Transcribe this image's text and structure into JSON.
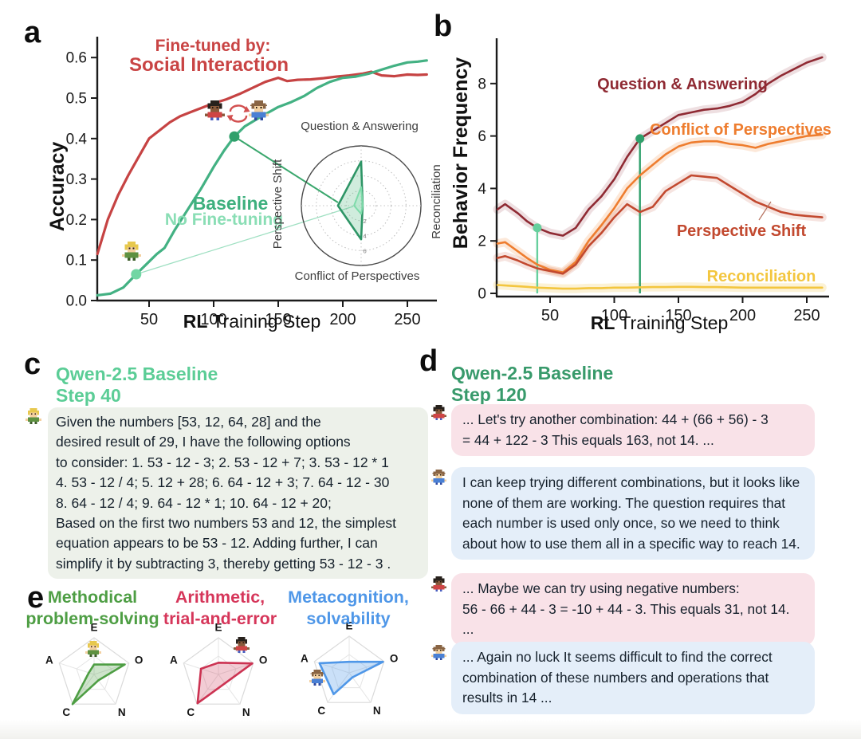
{
  "panels": {
    "a": {
      "label": "a",
      "ylabel": "Accuracy",
      "xlabel_bold": "RL",
      "xlabel_rest": " Training Step",
      "annotation_red_1": "Fine-tuned by:",
      "annotation_red_2": "Social Interaction",
      "annotation_red_color": "#c94444",
      "annotation_green_1": "Baseline",
      "annotation_green_2": "No Fine-tuning",
      "annotation_green_dark": "#3eb07e",
      "annotation_green_light": "#8adeb5"
    },
    "b": {
      "label": "b",
      "ylabel": "Behavior Frequency",
      "xlabel_bold": "RL",
      "xlabel_rest": " Training Step"
    },
    "c": {
      "label": "c",
      "title_line1": "Qwen-2.5 Baseline",
      "title_line2": "Step 40",
      "title_color": "#5bcd96",
      "message": "Given the numbers [53, 12, 64, 28] and the\ndesired result of 29, I have the following options\nto consider: 1. 53 - 12 - 3; 2. 53 - 12 + 7; 3. 53 - 12 * 1\n4. 53 - 12 / 4; 5. 12 + 28; 6. 64 - 12 + 3; 7. 64 - 12 - 30\n8. 64 - 12 / 4; 9. 64 - 12 * 1; 10. 64 - 12 + 20;\nBased on the first two numbers 53 and 12, the simplest\nequation appears to be 53 - 12.  Adding further, I can\nsimplify it by subtracting 3, thereby getting 53 - 12 - 3 ."
    },
    "d": {
      "label": "d",
      "title_line1": "Qwen-2.5 Baseline",
      "title_line2": "Step 120",
      "title_color": "#389a6b",
      "messages": [
        {
          "speaker": "agent-red",
          "text": "... Let's try another combination: 44 + (66 + 56) - 3\n= 44 + 122 - 3  This equals 163, not 14. ..."
        },
        {
          "speaker": "agent-blue",
          "text": "I can keep trying different combinations, but it looks like\nnone of them are working. The question requires that\neach number is used only once, so we need to think\nabout how to use them all in a specific way to reach 14."
        },
        {
          "speaker": "agent-red",
          "text": "... Maybe we can try using negative numbers:\n56 - 66 + 44 - 3 = -10 + 44 - 3. This equals 31, not 14. ..."
        },
        {
          "speaker": "agent-blue",
          "text": "... Again no luck  It seems difficult to find the correct\ncombination of these numbers and operations that\nresults in 14 ..."
        }
      ]
    },
    "e": {
      "label": "e"
    }
  },
  "chart_data": [
    {
      "id": "accuracy",
      "type": "line",
      "title": "",
      "xlabel": "RL Training Step",
      "ylabel": "Accuracy",
      "xlim": [
        10,
        265
      ],
      "ylim": [
        0,
        0.65
      ],
      "xticks": [
        50,
        100,
        150,
        200,
        250
      ],
      "yticks": [
        0.0,
        0.1,
        0.2,
        0.3,
        0.4,
        0.5,
        0.6
      ],
      "grid": false,
      "series": [
        {
          "name": "Fine-tuned by: Social Interaction",
          "color": "#c64343",
          "x": [
            10,
            18,
            26,
            34,
            42,
            50,
            58,
            66,
            74,
            82,
            90,
            100,
            110,
            120,
            130,
            140,
            150,
            157,
            165,
            175,
            185,
            195,
            205,
            215,
            222,
            230,
            240,
            250,
            258,
            265
          ],
          "y": [
            0.115,
            0.2,
            0.26,
            0.31,
            0.355,
            0.4,
            0.42,
            0.44,
            0.455,
            0.465,
            0.475,
            0.487,
            0.497,
            0.51,
            0.525,
            0.54,
            0.55,
            0.542,
            0.545,
            0.546,
            0.549,
            0.553,
            0.556,
            0.56,
            0.565,
            0.556,
            0.554,
            0.558,
            0.557,
            0.558
          ]
        },
        {
          "name": "Baseline No Fine-tuning",
          "color": "#43b183",
          "x": [
            10,
            20,
            30,
            40,
            48,
            56,
            62,
            70,
            80,
            90,
            100,
            108,
            116,
            124,
            132,
            140,
            150,
            160,
            170,
            180,
            190,
            200,
            210,
            220,
            230,
            240,
            250,
            258,
            265
          ],
          "y": [
            0.013,
            0.017,
            0.032,
            0.065,
            0.09,
            0.115,
            0.13,
            0.175,
            0.225,
            0.275,
            0.33,
            0.37,
            0.405,
            0.43,
            0.445,
            0.46,
            0.478,
            0.49,
            0.505,
            0.525,
            0.54,
            0.55,
            0.553,
            0.56,
            0.57,
            0.58,
            0.588,
            0.59,
            0.593
          ]
        }
      ],
      "markers": [
        {
          "x": 40,
          "y": 0.065,
          "color": "#72d6a4",
          "label": "Step 40"
        },
        {
          "x": 116,
          "y": 0.405,
          "color": "#2fa06b",
          "label": "Step 120"
        }
      ],
      "connectors": [
        {
          "to": [
            443,
            259
          ],
          "color": "#9fe0c2",
          "w": 1.3
        },
        {
          "to": [
            424,
            254
          ],
          "color": "#3aa76d",
          "w": 2
        }
      ]
    },
    {
      "id": "behavior-frequency",
      "type": "line",
      "title": "",
      "xlabel": "RL Training Step",
      "ylabel": "Behavior Frequency",
      "xlim": [
        9,
        262
      ],
      "ylim": [
        0,
        9.5
      ],
      "xticks": [
        50,
        100,
        150,
        200,
        250
      ],
      "yticks": [
        0,
        2,
        4,
        6,
        8
      ],
      "grid": false,
      "series": [
        {
          "name": "Question & Answering",
          "color": "#8f2a33",
          "band": "rgba(143,42,51,0.15)",
          "x": [
            9,
            15,
            25,
            32,
            40,
            50,
            60,
            70,
            80,
            90,
            100,
            110,
            120,
            130,
            140,
            150,
            160,
            170,
            180,
            190,
            200,
            210,
            220,
            230,
            240,
            250,
            262
          ],
          "y": [
            3.2,
            3.4,
            3.05,
            2.75,
            2.5,
            2.3,
            2.2,
            2.5,
            3.2,
            3.7,
            4.35,
            5.2,
            5.9,
            6.2,
            6.5,
            6.8,
            6.9,
            7.0,
            7.05,
            7.15,
            7.3,
            7.6,
            8.0,
            8.3,
            8.55,
            8.8,
            9.0
          ]
        },
        {
          "name": "Conflict of Perspectives",
          "color": "#ee7d2f",
          "band": "rgba(238,125,47,0.18)",
          "x": [
            9,
            15,
            25,
            32,
            40,
            50,
            60,
            70,
            80,
            90,
            100,
            110,
            120,
            130,
            140,
            150,
            160,
            170,
            180,
            190,
            200,
            210,
            220,
            230,
            240,
            250,
            262
          ],
          "y": [
            1.9,
            1.95,
            1.6,
            1.35,
            1.1,
            0.9,
            0.8,
            1.2,
            2.0,
            2.6,
            3.25,
            4.0,
            4.5,
            4.9,
            5.3,
            5.6,
            5.75,
            5.8,
            5.8,
            5.7,
            5.65,
            5.55,
            5.7,
            5.8,
            5.9,
            6.0,
            6.05
          ]
        },
        {
          "name": "Perspective Shift",
          "color": "#c2492f",
          "band": "rgba(194,73,47,0.15)",
          "x": [
            9,
            15,
            25,
            32,
            40,
            50,
            60,
            70,
            80,
            90,
            100,
            110,
            120,
            130,
            140,
            150,
            160,
            170,
            180,
            190,
            200,
            210,
            220,
            230,
            240,
            250,
            262
          ],
          "y": [
            1.35,
            1.42,
            1.25,
            1.1,
            0.95,
            0.85,
            0.75,
            1.1,
            1.8,
            2.3,
            2.9,
            3.4,
            3.1,
            3.3,
            3.9,
            4.2,
            4.5,
            4.45,
            4.4,
            4.1,
            3.8,
            3.5,
            3.3,
            3.1,
            3.0,
            2.95,
            2.9
          ]
        },
        {
          "name": "Reconciliation",
          "color": "#f3c63f",
          "band": "rgba(243,198,63,0.22)",
          "x": [
            9,
            15,
            25,
            32,
            40,
            50,
            60,
            70,
            80,
            90,
            100,
            110,
            120,
            130,
            140,
            150,
            160,
            170,
            180,
            190,
            200,
            210,
            220,
            230,
            240,
            250,
            262
          ],
          "y": [
            0.32,
            0.3,
            0.27,
            0.25,
            0.22,
            0.2,
            0.18,
            0.18,
            0.2,
            0.2,
            0.22,
            0.22,
            0.23,
            0.24,
            0.24,
            0.25,
            0.25,
            0.24,
            0.24,
            0.23,
            0.22,
            0.22,
            0.22,
            0.22,
            0.22,
            0.22,
            0.22
          ]
        }
      ],
      "event_lines": [
        {
          "x": 40,
          "y": 2.5,
          "color": "#66cf9d",
          "label": "Step 40"
        },
        {
          "x": 120,
          "y": 5.9,
          "color": "#2fa06b",
          "label": "Step 120"
        }
      ]
    },
    {
      "id": "behavior-radar-inset",
      "type": "radar",
      "axes": [
        "Question & Answering",
        "Reconciliation",
        "Conflict of Perspectives",
        "Perspective Shift"
      ],
      "rmax": 8,
      "rticks": [
        2,
        4,
        6
      ],
      "series": [
        {
          "name": "Step 120",
          "color": "#2e9566",
          "fill": "rgba(98,193,142,0.30)",
          "values": [
            5.9,
            0.2,
            4.5,
            3.1
          ]
        },
        {
          "name": "Step 40",
          "color": "#7edbaa",
          "fill": "rgba(152,226,186,0.35)",
          "values": [
            2.5,
            0.2,
            1.1,
            0.95
          ]
        }
      ]
    },
    {
      "id": "personality-radars",
      "type": "radar-pentagon",
      "axes": [
        "E",
        "O",
        "N",
        "C",
        "A"
      ],
      "scale": [
        0,
        1
      ],
      "charts": [
        {
          "title": "Methodical\nproblem-solving",
          "title_color": "#4e9e44",
          "stroke": "#4e9e44",
          "fill": "rgba(78,158,68,0.28)",
          "values": [
            0.27,
            0.88,
            0.2,
            1.0,
            0.15
          ],
          "avatar": "green"
        },
        {
          "title": "Arithmetic,\ntrial-and-error",
          "title_color": "#d6365a",
          "stroke": "#cc3352",
          "fill": "rgba(204,51,82,0.25)",
          "values": [
            0.32,
            0.97,
            0.3,
            0.97,
            0.5
          ],
          "avatar": "dark"
        },
        {
          "title": "Metacognition,\nsolvability",
          "title_color": "#4f97e8",
          "stroke": "#4f97e8",
          "fill": "rgba(79,151,232,0.30)",
          "values": [
            0.3,
            0.97,
            0.15,
            0.72,
            0.85
          ],
          "avatar": "hat"
        }
      ]
    }
  ]
}
